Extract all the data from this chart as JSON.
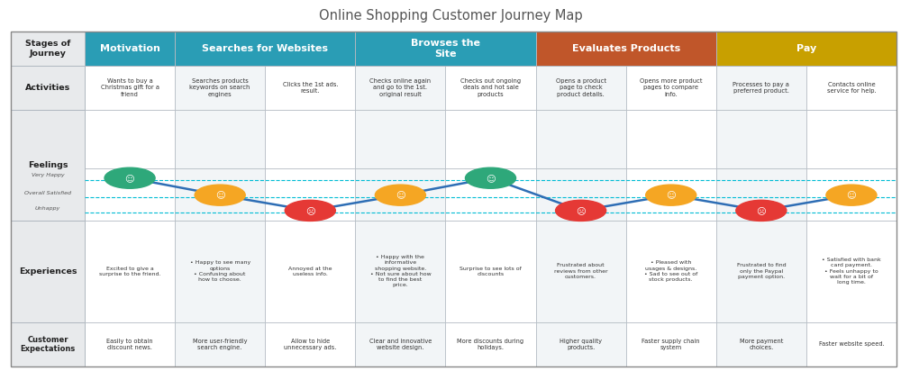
{
  "title": "Online Shopping Customer Journey Map",
  "title_color": "#555555",
  "bg_color": "#ffffff",
  "stage_defs": [
    {
      "label": "Motivation",
      "cols": 1,
      "color": "#2a9db5"
    },
    {
      "label": "Searches for Websites",
      "cols": 2,
      "color": "#2a9db5"
    },
    {
      "label": "Browses the\nSite",
      "cols": 2,
      "color": "#2a9db5"
    },
    {
      "label": "Evaluates Products",
      "cols": 2,
      "color": "#c0562a"
    },
    {
      "label": "Pay",
      "cols": 2,
      "color": "#c8a000"
    }
  ],
  "activities": [
    "Wants to buy a\nChristmas gift for a\nfriend",
    "Searches products\nkeywords on search\nengines",
    "Clicks the 1st ads.\nresult.",
    "Checks online again\nand go to the 1st.\noriginal result",
    "Checks out ongoing\ndeals and hot sale\nproducts",
    "Opens a product\npage to check\nproduct details.",
    "Opens more product\npages to compare\ninfo.",
    "Processes to pay a\npreferred product.",
    "Contacts online\nservice for help."
  ],
  "experiences": [
    "Excited to give a\nsurprise to the friend.",
    "• Happy to see many\noptions\n• Confusing about\nhow to choose.",
    "Annoyed at the\nuseless info.",
    "• Happy with the\ninformative\nshopping website.\n• Not sure about how\nto find the best\nprice.",
    "Surprise to see lots of\ndiscounts",
    "Frustrated about\nreviews from other\ncustomers.",
    "• Pleased with\nusages & designs.\n• Sad to see out of\nstock products.",
    "Frustrated to find\nonly the Paypal\npayment option.",
    "• Satisfied with bank\ncard payment.\n• Feels unhappy to\nwait for a bit of\nlong time."
  ],
  "expectations": [
    "Easily to obtain\ndiscount news.",
    "More user-friendly\nsearch engine.",
    "Allow to hide\nunnecessary ads.",
    "Clear and innovative\nwebsite design.",
    "More discounts during\nholidays.",
    "Higher quality\nproducts.",
    "Faster supply chain\nsystem",
    "More payment\nchoices.",
    "Faster website speed."
  ],
  "feeling_levels": [
    "very_happy",
    "satisfied",
    "unhappy",
    "satisfied",
    "very_happy",
    "unhappy",
    "satisfied",
    "unhappy",
    "satisfied"
  ],
  "row_label_color_bold": "#333333",
  "row_label_bg": "#e8eaec",
  "border_color": "#b0b8c0",
  "line_color": "#2e6eb5",
  "dash_color": "#00bcd4",
  "very_happy_color": "#2ea87a",
  "satisfied_color": "#f5a623",
  "unhappy_color": "#e53935"
}
